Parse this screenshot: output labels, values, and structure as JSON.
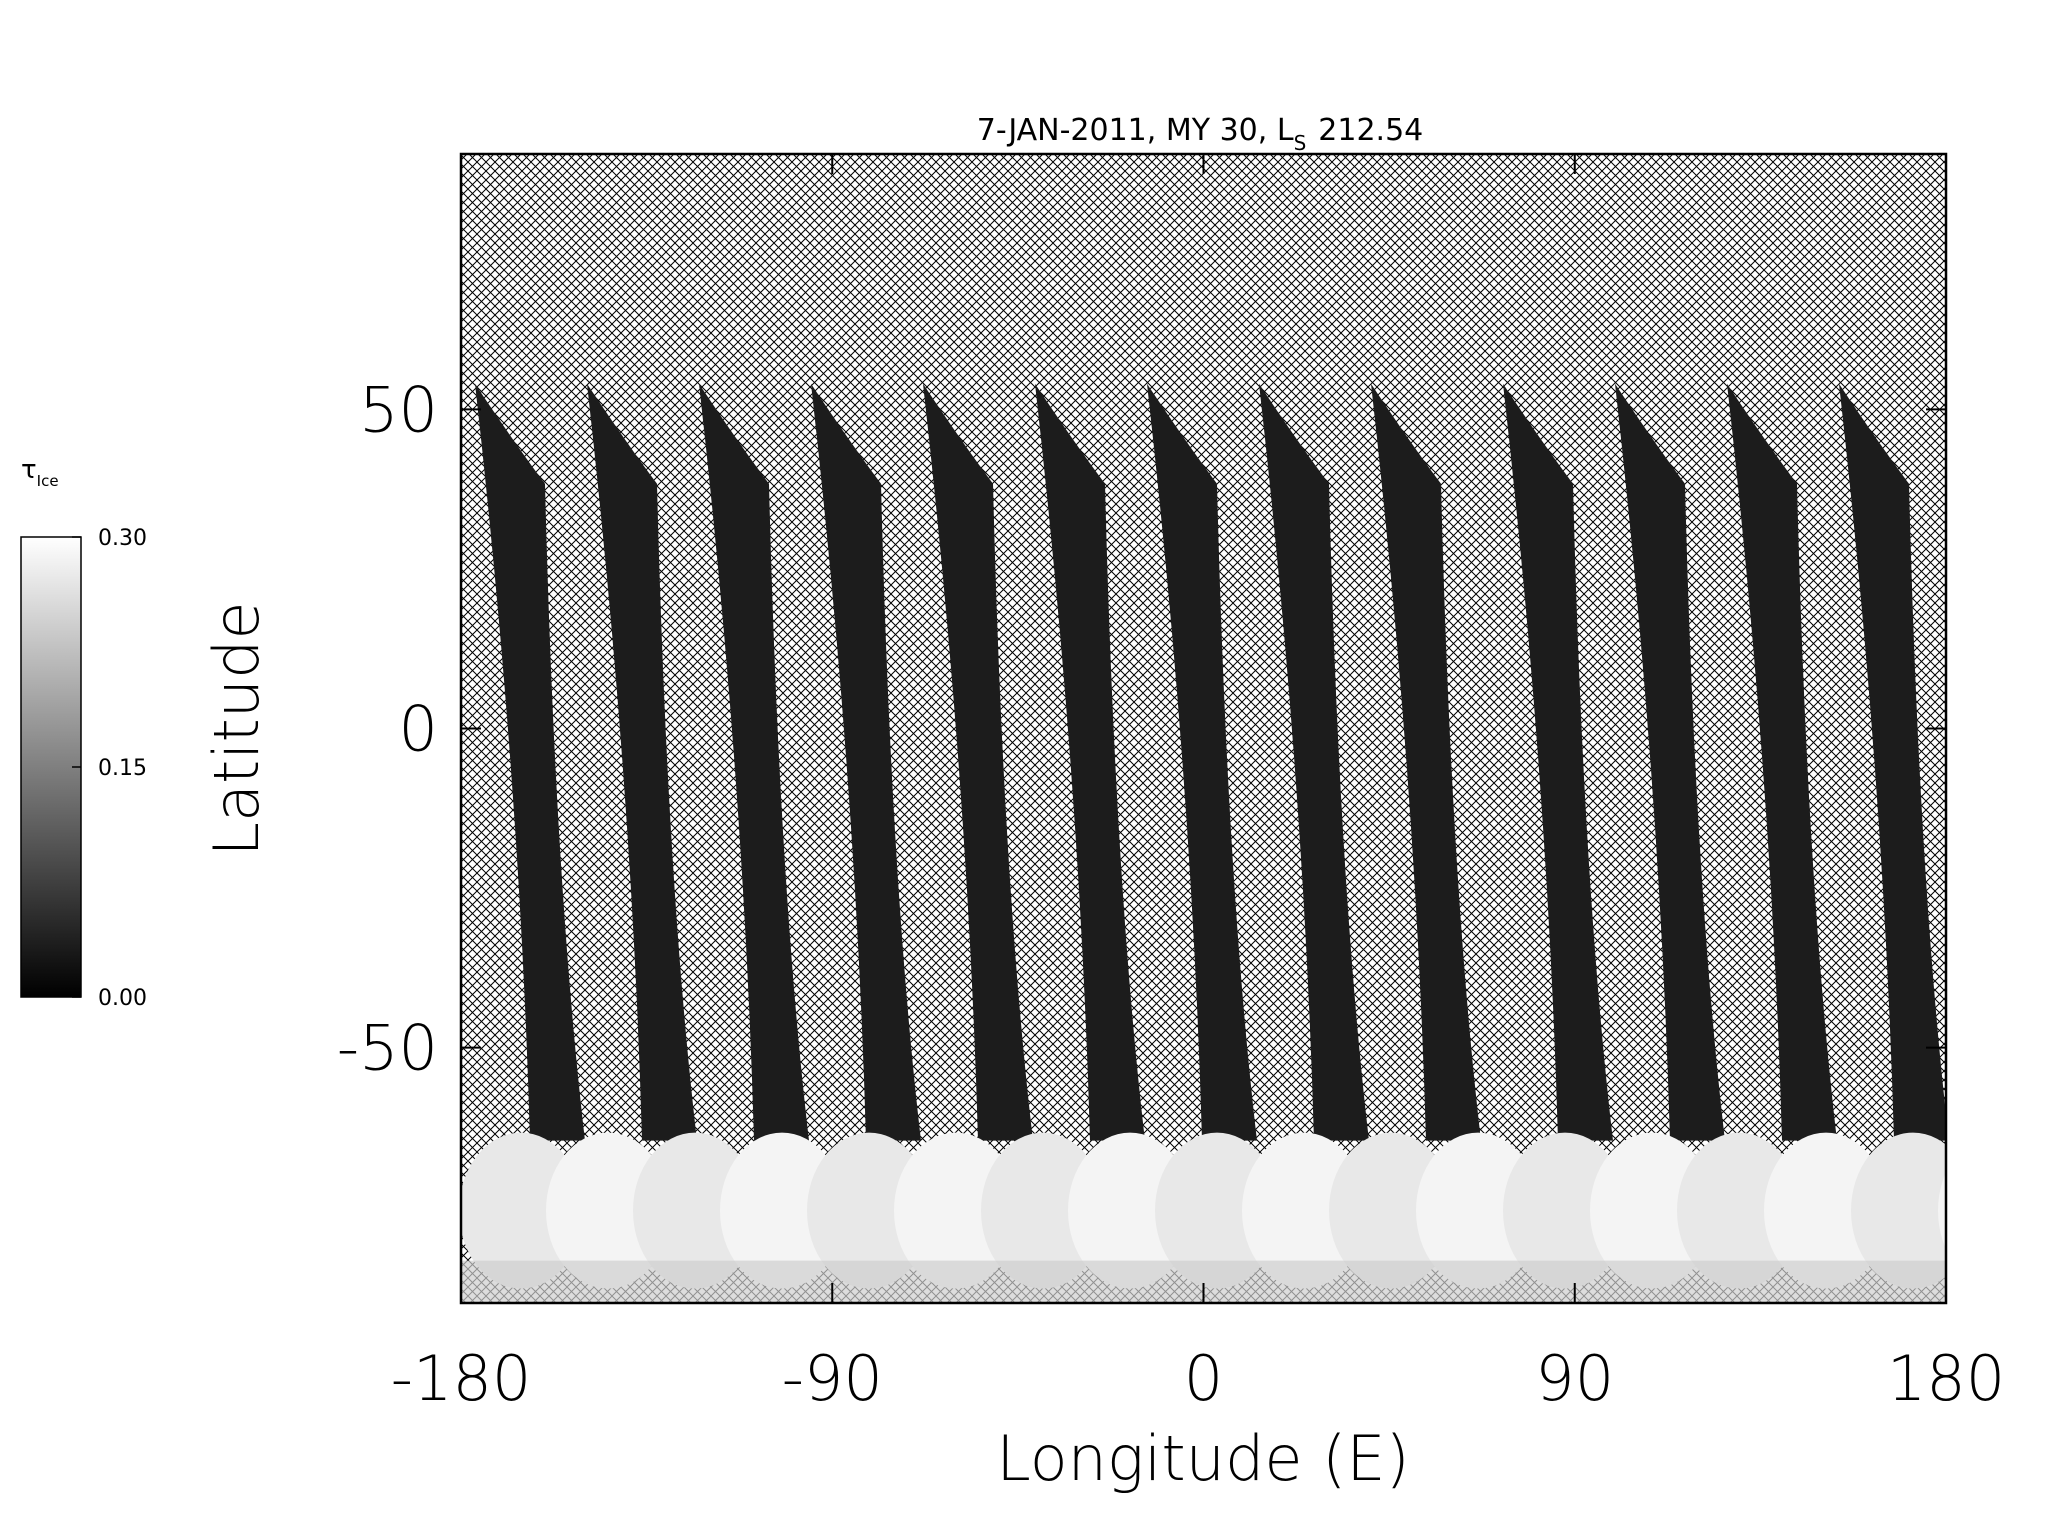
{
  "chart_data": {
    "type": "map",
    "title": {
      "text": "7-JAN-2011, MY 30,  L",
      "subscript": "S",
      "after": "212.54"
    },
    "x_label": "Longitude (E)",
    "y_label": "Latitude",
    "xlim": [
      -180,
      180
    ],
    "xticks": [
      -180,
      -90,
      0,
      90,
      180
    ],
    "ylim": [
      -90,
      90
    ],
    "yticks": [
      -50,
      0,
      50
    ],
    "colorbar": {
      "label": "τ",
      "label_subscript": "Ice",
      "lim": [
        0,
        0.3
      ],
      "colors": [
        "#000000",
        "#ffffff"
      ],
      "ticks": [
        {
          "value": 0,
          "label": "0.00"
        },
        {
          "value": 0.15,
          "label": "0.15"
        },
        {
          "value": 0.3,
          "label": "0.30"
        }
      ]
    }
  }
}
